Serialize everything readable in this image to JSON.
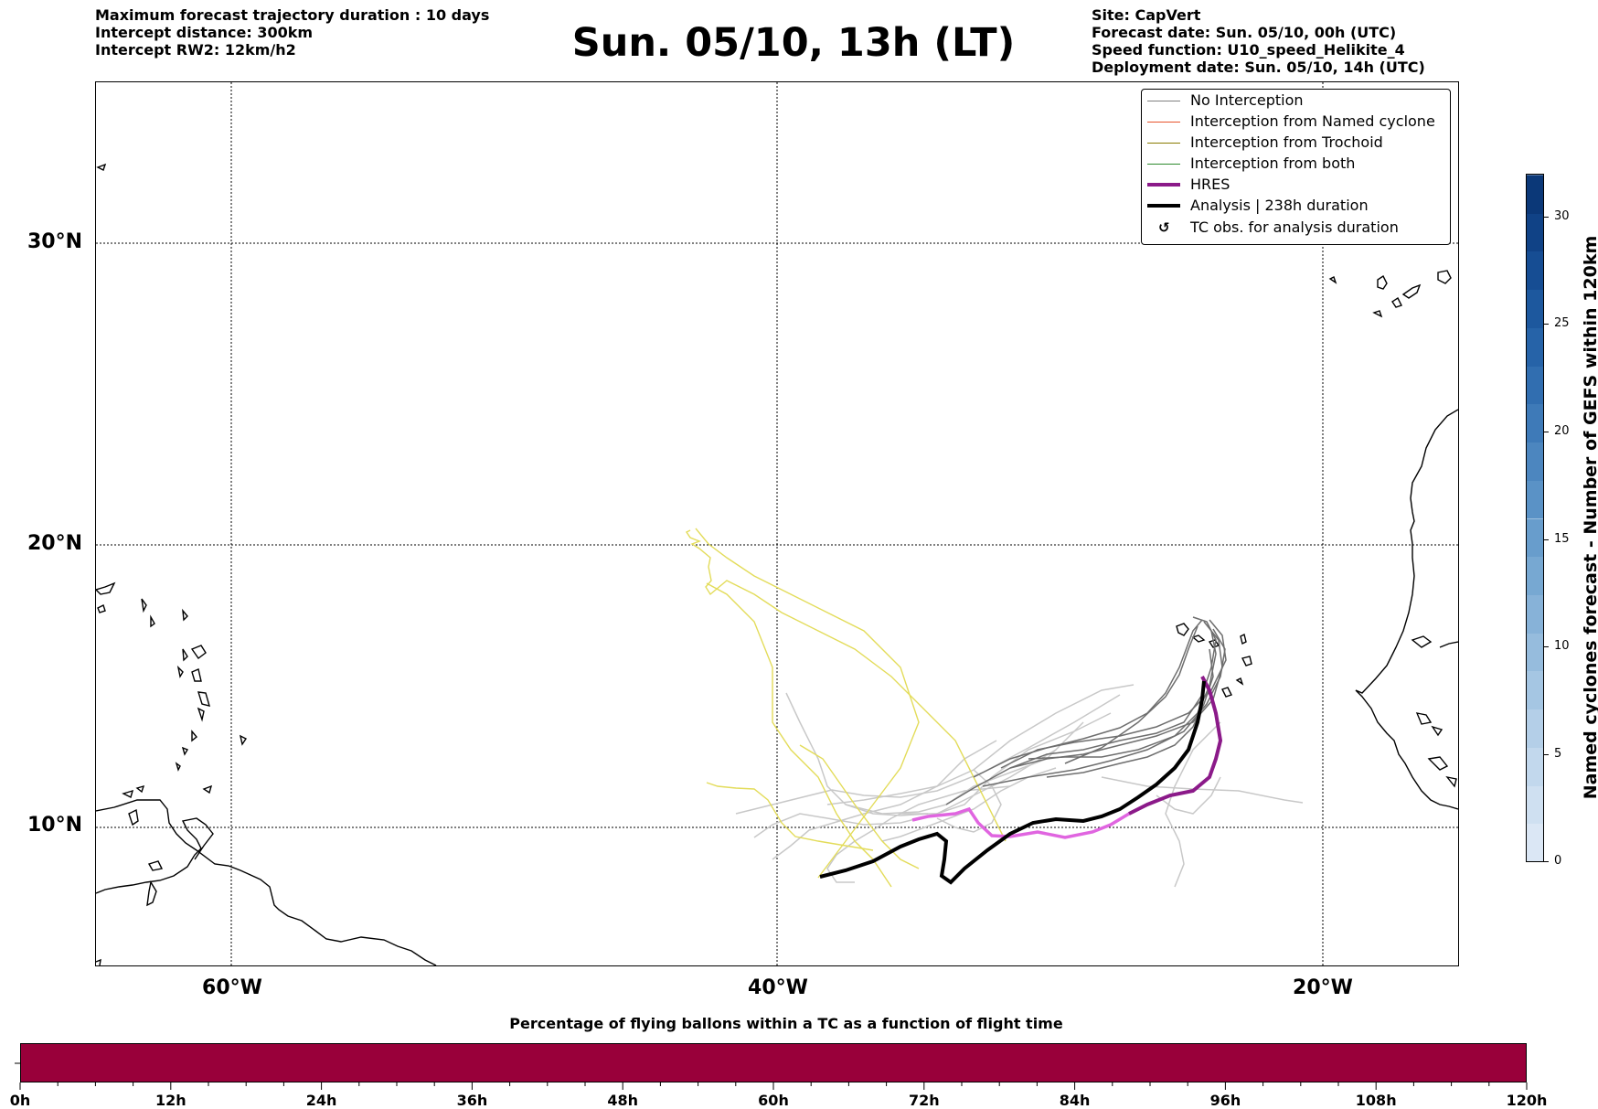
{
  "header": {
    "left": [
      "Maximum forecast trajectory duration : 10 days",
      "Intercept distance: 300km",
      "Intercept RW2: 12km/h2"
    ],
    "title": "Sun. 05/10, 13h (LT)",
    "right": [
      "Site: CapVert",
      "Forecast date: Sun. 05/10, 00h (UTC)",
      "Speed function: U10_speed_Helikite_4",
      "Deployment date: Sun. 05/10, 14h (UTC)"
    ]
  },
  "map": {
    "lat_labels": [
      "30°N",
      "20°N",
      "10°N"
    ],
    "lon_labels": [
      "60°W",
      "40°W",
      "20°W"
    ],
    "extent": {
      "lon": [
        -65,
        -15
      ],
      "lat": [
        5,
        36.3
      ]
    },
    "gridlines": {
      "lon": [
        -60,
        -40,
        -20
      ],
      "lat": [
        10,
        20,
        30
      ]
    }
  },
  "legend": {
    "items": [
      {
        "label": "No Interception",
        "color": "#808080",
        "width": 1.2,
        "kind": "line"
      },
      {
        "label": "Interception from Named cyclone",
        "color": "#e8542c",
        "width": 1.2,
        "kind": "line"
      },
      {
        "label": "Interception from Trochoid",
        "color": "#8a7a00",
        "width": 1.2,
        "kind": "line"
      },
      {
        "label": "Interception from both",
        "color": "#2e8b2e",
        "width": 1.2,
        "kind": "line"
      },
      {
        "label": "HRES",
        "color": "#8b1a89",
        "width": 4,
        "kind": "line"
      },
      {
        "label": "Analysis | 238h duration",
        "color": "#000000",
        "width": 4,
        "kind": "line"
      },
      {
        "label": "TC obs. for analysis duration",
        "symbol": "↺",
        "kind": "symbol"
      }
    ]
  },
  "colorbar": {
    "label": "Named cyclones forecast - Number of GEFS within 120km",
    "ticks": [
      "0",
      "5",
      "10",
      "15",
      "20",
      "25",
      "30"
    ],
    "range": [
      0,
      32
    ],
    "colors": [
      "#dbe7f5",
      "#cfe0f1",
      "#c2d8ed",
      "#b4cfe8",
      "#a5c6e3",
      "#96bcdd",
      "#87b2d8",
      "#77a8d2",
      "#689dcc",
      "#5a92c6",
      "#4c86bf",
      "#3e7ab8",
      "#316eb0",
      "#2663a8",
      "#1d589e",
      "#164d93",
      "#104286",
      "#0b3878"
    ]
  },
  "timebar": {
    "title": "Percentage of flying ballons within a TC as a function of flight time",
    "color": "#99003a",
    "ticks": [
      "0h",
      "12h",
      "24h",
      "36h",
      "48h",
      "60h",
      "72h",
      "84h",
      "96h",
      "108h",
      "120h"
    ]
  }
}
